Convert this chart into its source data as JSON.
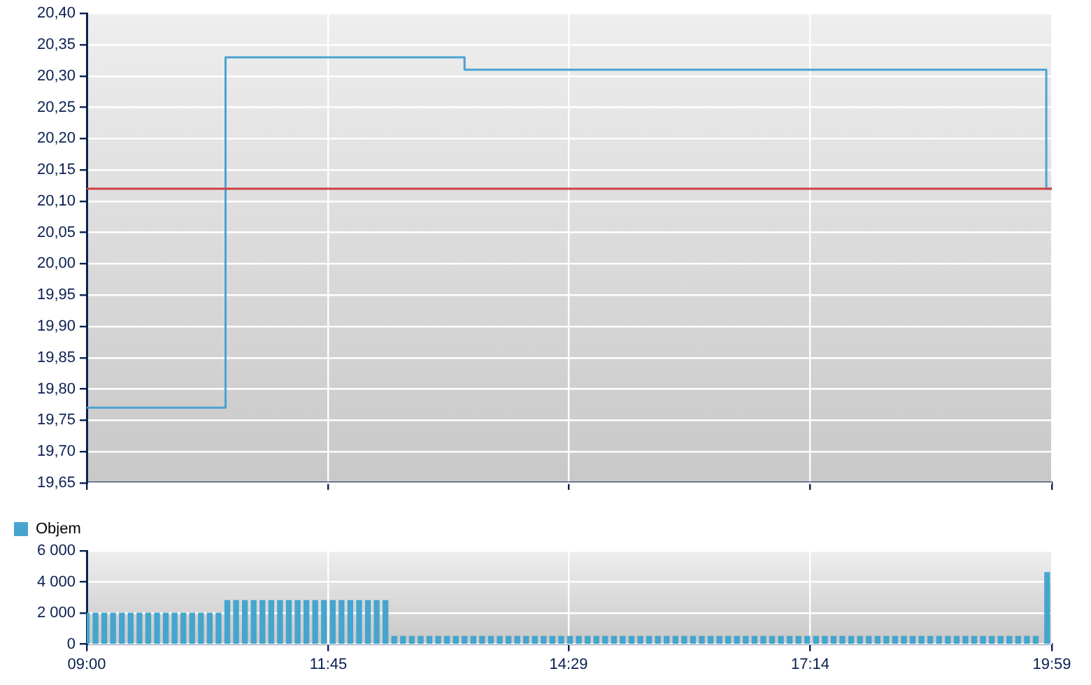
{
  "chart_data": [
    {
      "type": "step",
      "x": [
        9,
        10.58,
        13.3,
        19.92,
        19.9833
      ],
      "values": [
        19.77,
        20.33,
        20.31,
        20.12,
        20.12
      ],
      "color": "#4aa3d0",
      "xlim": [
        9,
        19.9833
      ],
      "xticks": [
        {
          "value": 9,
          "label": null
        },
        {
          "value": 11.75,
          "label": null
        },
        {
          "value": 14.4833,
          "label": null
        },
        {
          "value": 17.2333,
          "label": null
        },
        {
          "value": 19.9833,
          "label": null
        }
      ],
      "ylim": [
        19.65,
        20.4
      ],
      "yticks": [
        {
          "value": 19.65,
          "label": "19,65"
        },
        {
          "value": 19.7,
          "label": "19,70"
        },
        {
          "value": 19.75,
          "label": "19,75"
        },
        {
          "value": 19.8,
          "label": "19,80"
        },
        {
          "value": 19.85,
          "label": "19,85"
        },
        {
          "value": 19.9,
          "label": "19,90"
        },
        {
          "value": 19.95,
          "label": "19,95"
        },
        {
          "value": 20,
          "label": "20,00"
        },
        {
          "value": 20.05,
          "label": "20,05"
        },
        {
          "value": 20.1,
          "label": "20,10"
        },
        {
          "value": 20.15,
          "label": "20,15"
        },
        {
          "value": 20.2,
          "label": "20,20"
        },
        {
          "value": 20.25,
          "label": "20,25"
        },
        {
          "value": 20.3,
          "label": "20,30"
        },
        {
          "value": 20.35,
          "label": "20,35"
        },
        {
          "value": 20.4,
          "label": "20,40"
        }
      ],
      "ref_lines": [
        {
          "axis": "y",
          "value": 20.12,
          "color": "#d04040"
        }
      ],
      "grid": true,
      "tick_labels": "y"
    },
    {
      "type": "bar",
      "series": [
        {
          "name": "Objem",
          "color": "#45a5cf",
          "x": [
            9,
            9.1,
            9.2,
            9.3,
            9.4,
            9.5,
            9.6,
            9.7,
            9.8,
            9.9,
            10,
            10.1,
            10.2,
            10.3,
            10.4,
            10.5,
            10.6,
            10.7,
            10.8,
            10.9,
            11,
            11.1,
            11.2,
            11.3,
            11.4,
            11.5,
            11.6,
            11.7,
            11.8,
            11.9,
            12,
            12.1,
            12.2,
            12.3,
            12.4,
            12.5,
            12.6,
            12.7,
            12.8,
            12.9,
            13,
            13.1,
            13.2,
            13.3,
            13.4,
            13.5,
            13.6,
            13.7,
            13.8,
            13.9,
            14,
            14.1,
            14.2,
            14.3,
            14.4,
            14.5,
            14.6,
            14.7,
            14.8,
            14.9,
            15,
            15.1,
            15.2,
            15.3,
            15.4,
            15.5,
            15.6,
            15.7,
            15.8,
            15.9,
            16,
            16.1,
            16.2,
            16.3,
            16.4,
            16.5,
            16.6,
            16.7,
            16.8,
            16.9,
            17,
            17.1,
            17.2,
            17.3,
            17.4,
            17.5,
            17.6,
            17.7,
            17.8,
            17.9,
            18,
            18.1,
            18.2,
            18.3,
            18.4,
            18.5,
            18.6,
            18.7,
            18.8,
            18.9,
            19,
            19.1,
            19.2,
            19.3,
            19.4,
            19.5,
            19.6,
            19.7,
            19.8,
            19.93
          ],
          "values": [
            2000,
            2000,
            2000,
            2000,
            2000,
            2000,
            2000,
            2000,
            2000,
            2000,
            2000,
            2000,
            2000,
            2000,
            2000,
            2000,
            2800,
            2800,
            2800,
            2800,
            2800,
            2800,
            2800,
            2800,
            2800,
            2800,
            2800,
            2800,
            2800,
            2800,
            2800,
            2800,
            2800,
            2800,
            2800,
            500,
            500,
            500,
            500,
            500,
            500,
            500,
            500,
            500,
            500,
            500,
            500,
            500,
            500,
            500,
            500,
            500,
            500,
            500,
            500,
            500,
            500,
            500,
            500,
            500,
            500,
            500,
            500,
            500,
            500,
            500,
            500,
            500,
            500,
            500,
            500,
            500,
            500,
            500,
            500,
            500,
            500,
            500,
            500,
            500,
            500,
            500,
            500,
            500,
            500,
            500,
            500,
            500,
            500,
            500,
            500,
            500,
            500,
            500,
            500,
            500,
            500,
            500,
            500,
            500,
            500,
            500,
            500,
            500,
            500,
            500,
            500,
            500,
            500,
            4600
          ]
        }
      ],
      "xlim": [
        9,
        19.9833
      ],
      "xticks": [
        {
          "value": 9,
          "label": "09:00"
        },
        {
          "value": 11.75,
          "label": "11:45"
        },
        {
          "value": 14.4833,
          "label": "14:29"
        },
        {
          "value": 17.2333,
          "label": "17:14"
        },
        {
          "value": 19.9833,
          "label": "19:59"
        }
      ],
      "ylim": [
        0,
        6000
      ],
      "yticks": [
        {
          "value": 0,
          "label": "0"
        },
        {
          "value": 2000,
          "label": "2 000"
        },
        {
          "value": 4000,
          "label": "4 000"
        },
        {
          "value": 6000,
          "label": "6 000"
        }
      ],
      "grid": true,
      "legend": "top left"
    }
  ]
}
